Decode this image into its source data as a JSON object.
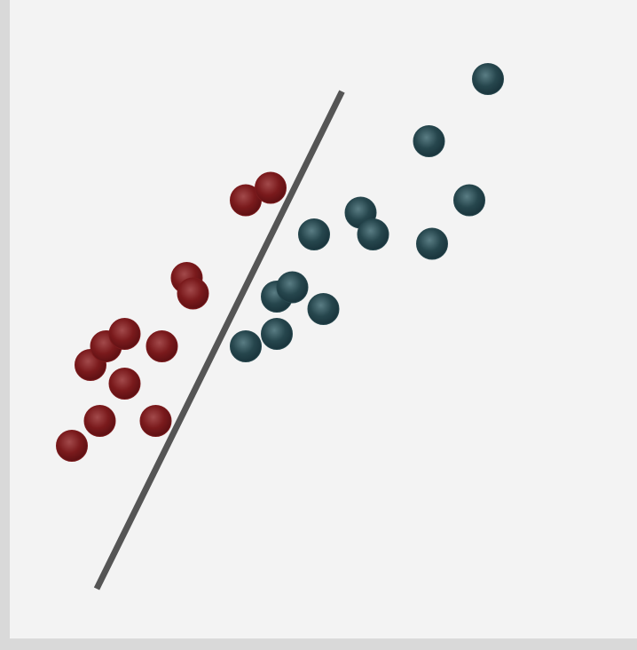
{
  "chart_data": {
    "type": "scatter",
    "title": "",
    "xlabel": "",
    "ylabel": "",
    "xlim": [
      0,
      10
    ],
    "ylim": [
      0,
      10
    ],
    "grid": false,
    "legend": "none",
    "colors": {
      "background": "#f3f3f3",
      "axis_shadow": "#d9d9d9",
      "boundary_line": "#555555",
      "class_a": "#7a1a1c",
      "class_b": "#26464d"
    },
    "series": [
      {
        "class": "class_a",
        "color": "#7a1a1c",
        "points": [
          {
            "x": 1.0,
            "y": 3.0
          },
          {
            "x": 1.45,
            "y": 3.4
          },
          {
            "x": 2.35,
            "y": 3.4
          },
          {
            "x": 1.3,
            "y": 4.3
          },
          {
            "x": 1.85,
            "y": 4.0
          },
          {
            "x": 1.55,
            "y": 4.6
          },
          {
            "x": 2.45,
            "y": 4.6
          },
          {
            "x": 1.85,
            "y": 4.8
          },
          {
            "x": 2.85,
            "y": 5.7
          },
          {
            "x": 2.95,
            "y": 5.45
          },
          {
            "x": 3.8,
            "y": 6.95
          },
          {
            "x": 4.2,
            "y": 7.15
          }
        ]
      },
      {
        "class": "class_b",
        "color": "#26464d",
        "points": [
          {
            "x": 3.8,
            "y": 4.6
          },
          {
            "x": 4.3,
            "y": 4.8
          },
          {
            "x": 4.3,
            "y": 5.4
          },
          {
            "x": 4.55,
            "y": 5.55
          },
          {
            "x": 5.05,
            "y": 5.2
          },
          {
            "x": 4.9,
            "y": 6.4
          },
          {
            "x": 5.65,
            "y": 6.75
          },
          {
            "x": 5.85,
            "y": 6.4
          },
          {
            "x": 6.8,
            "y": 6.25
          },
          {
            "x": 6.75,
            "y": 7.9
          },
          {
            "x": 7.4,
            "y": 6.95
          },
          {
            "x": 7.7,
            "y": 8.9
          }
        ]
      }
    ],
    "decision_boundary": {
      "from": {
        "x": 1.4,
        "y": 0.7
      },
      "to": {
        "x": 5.35,
        "y": 8.7
      }
    }
  }
}
